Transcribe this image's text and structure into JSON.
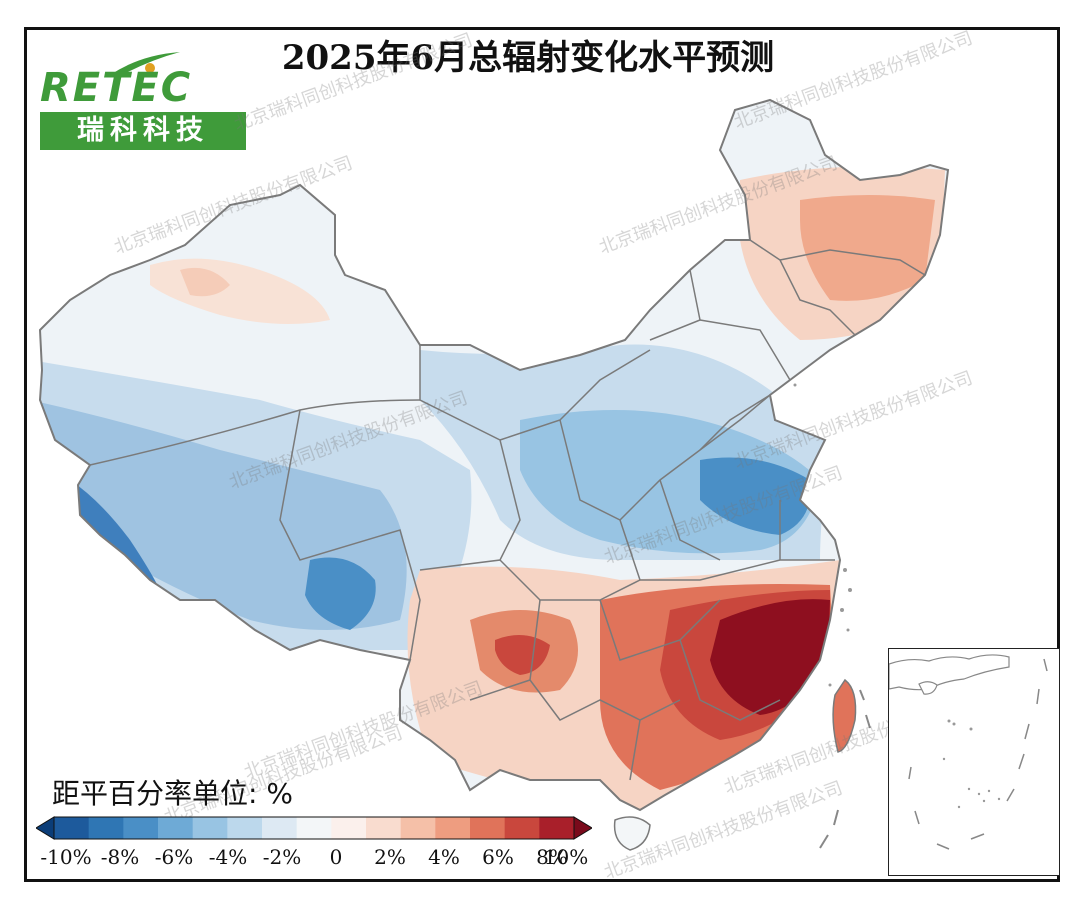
{
  "title": "2025年6月总辐射变化水平预测",
  "logo": {
    "brand_en": "RETEC",
    "brand_cn": "瑞科科技"
  },
  "watermark": "北京瑞科同创科技股份有限公司",
  "legend": {
    "unit_label": "距平百分率单位: %",
    "ticks": [
      "-10%",
      "-8%",
      "-6%",
      "-4%",
      "-2%",
      "0",
      "2%",
      "4%",
      "6%",
      "8%",
      "10%"
    ],
    "colors": [
      "#0b3d78",
      "#1d5a9c",
      "#2f76b4",
      "#4a8fc6",
      "#6eaad6",
      "#98c4e3",
      "#bcd8ec",
      "#dde9f3",
      "#f3f6f8",
      "#fbf0ec",
      "#f9dccf",
      "#f5c0a8",
      "#ee9d80",
      "#e0735a",
      "#c9473d",
      "#a91f2a",
      "#7a0a1b"
    ]
  },
  "map": {
    "region": "中国",
    "colors": {
      "border": "#7a7a7a",
      "neutral": "#eef3f7",
      "light_blue": "#c7dced",
      "mid_blue": "#8fb8dc",
      "deep_blue": "#3f7fbd",
      "light_red": "#f6d4c4",
      "mid_red": "#e48a6b",
      "deep_red": "#8e0f1f"
    }
  }
}
